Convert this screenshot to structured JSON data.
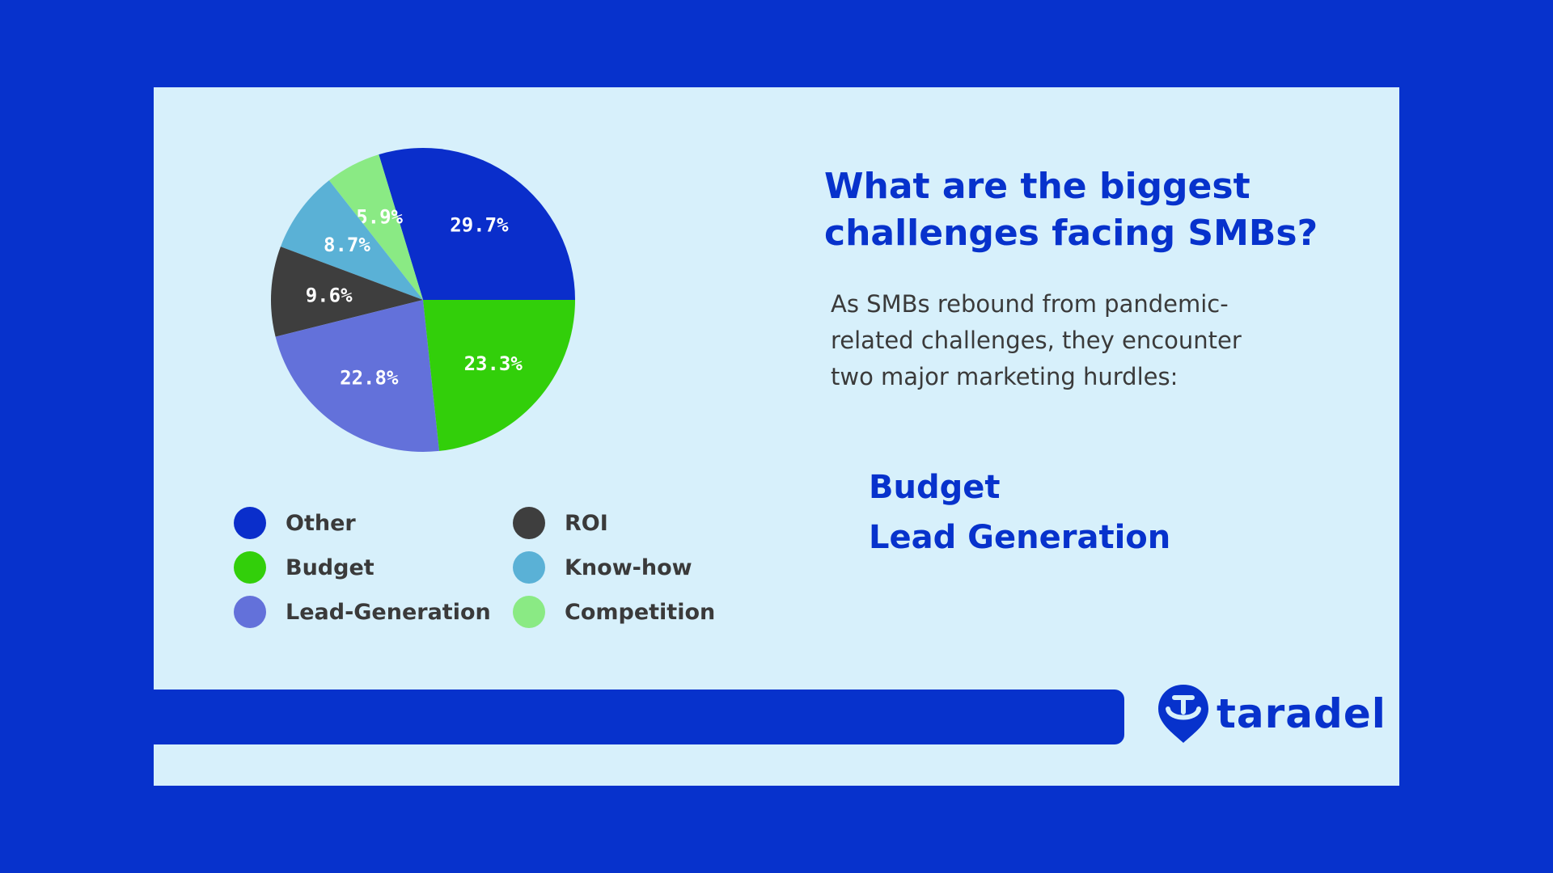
{
  "chart_data": {
    "type": "pie",
    "categories": [
      "Other",
      "Competition",
      "Know-how",
      "ROI",
      "Lead-Generation",
      "Budget"
    ],
    "values": [
      29.7,
      5.9,
      8.7,
      9.6,
      22.8,
      23.3
    ],
    "labels": [
      "29.7%",
      "5.9%",
      "8.7%",
      "9.6%",
      "22.8%",
      "23.3%"
    ],
    "colors": [
      "#0a2ecb",
      "#8aea84",
      "#5ab1d6",
      "#3e3e3e",
      "#6371da",
      "#32cf0a"
    ],
    "legend_placement": "bottom"
  },
  "legend": [
    {
      "label": "Other",
      "color": "#0a2ecb"
    },
    {
      "label": "Budget",
      "color": "#32cf0a"
    },
    {
      "label": "Lead-Generation",
      "color": "#6371da"
    },
    {
      "label": "ROI",
      "color": "#3e3e3e"
    },
    {
      "label": "Know-how",
      "color": "#5ab1d6"
    },
    {
      "label": "Competition",
      "color": "#8aea84"
    }
  ],
  "title": "What are the biggest challenges facing SMBs?",
  "body": "As SMBs rebound from pandemic-related challenges, they encounter two major marketing hurdles:",
  "hurdles": [
    "Budget",
    "Lead Generation"
  ],
  "logo": {
    "text": "taradel",
    "icon": "location-pin-smile-icon"
  }
}
